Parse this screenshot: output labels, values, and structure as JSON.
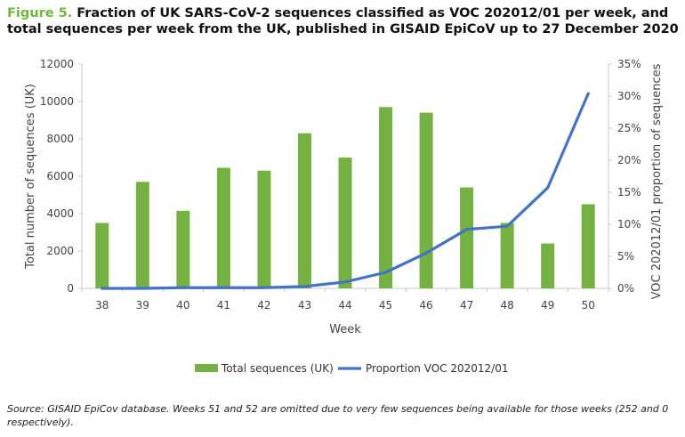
{
  "figure": {
    "label": "Figure 5.",
    "title": "Fraction of UK SARS-CoV-2 sequences classified as VOC 202012/01 per week, and total sequences per week from the UK, published in GISAID EpiCoV up to 27 December 2020",
    "source": "Source: GISAID EpiCov database. Weeks 51 and 52 are omitted due to very few sequences being available for those weeks (252 and 0 respectively)."
  },
  "colors": {
    "bar": "#75b043",
    "line": "#4472c4",
    "title_accent": "#73b543"
  },
  "chart_data": {
    "type": "bar+line",
    "xlabel": "Week",
    "ylabel": "Total number of sequences (UK)",
    "y2label": "VOC 202012/01 proportion of sequences",
    "categories": [
      "38",
      "39",
      "40",
      "41",
      "42",
      "43",
      "44",
      "45",
      "46",
      "47",
      "48",
      "49",
      "50"
    ],
    "ylim": [
      0,
      12000
    ],
    "yticks": [
      0,
      2000,
      4000,
      6000,
      8000,
      10000,
      12000
    ],
    "ytick_labels": [
      "0",
      "2000",
      "4000",
      "6000",
      "8000",
      "10000",
      "12000"
    ],
    "y2lim": [
      0,
      0.35
    ],
    "y2ticks": [
      0,
      0.05,
      0.1,
      0.15,
      0.2,
      0.25,
      0.3,
      0.35
    ],
    "y2tick_labels": [
      "0%",
      "5%",
      "10%",
      "15%",
      "20%",
      "25%",
      "30%",
      "35%"
    ],
    "series": [
      {
        "name": "Total sequences (UK)",
        "type": "bar",
        "axis": "left",
        "values": [
          3500,
          5700,
          4150,
          6450,
          6300,
          8300,
          7000,
          9700,
          9400,
          5400,
          3500,
          2400,
          4500
        ]
      },
      {
        "name": "Proportion VOC 202012/01",
        "type": "line",
        "axis": "right",
        "values": [
          0.0,
          0.0,
          0.001,
          0.001,
          0.001,
          0.003,
          0.01,
          0.025,
          0.055,
          0.092,
          0.097,
          0.157,
          0.304
        ]
      }
    ],
    "legend_position": "bottom"
  }
}
